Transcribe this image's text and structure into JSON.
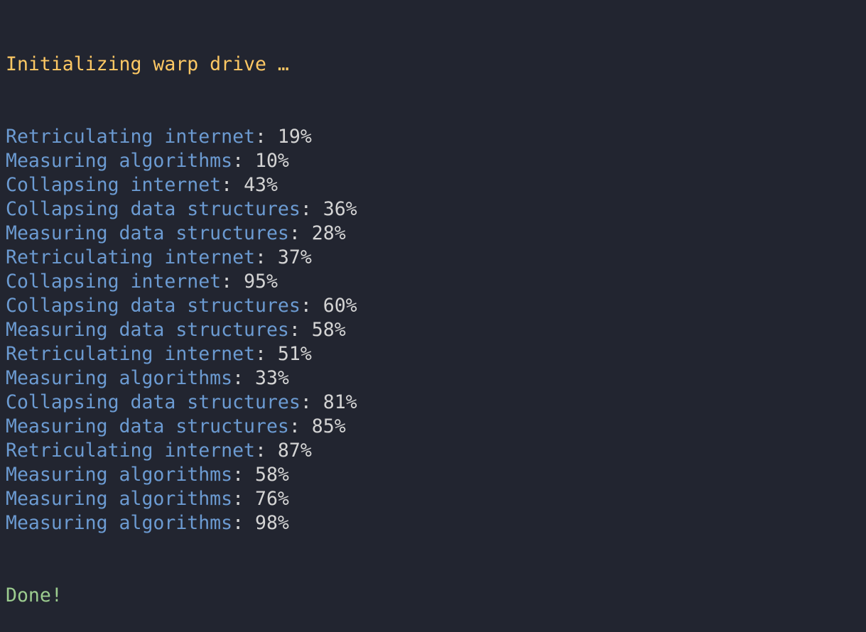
{
  "colors": {
    "background": "#222530",
    "header": "#fdc864",
    "label": "#6c9bd2",
    "value": "#d4d4d4",
    "done": "#9ccc8f"
  },
  "header": "Initializing warp drive …",
  "lines": [
    {
      "label": "Retriculating internet",
      "value": "19%"
    },
    {
      "label": "Measuring algorithms",
      "value": "10%"
    },
    {
      "label": "Collapsing internet",
      "value": "43%"
    },
    {
      "label": "Collapsing data structures",
      "value": "36%"
    },
    {
      "label": "Measuring data structures",
      "value": "28%"
    },
    {
      "label": "Retriculating internet",
      "value": "37%"
    },
    {
      "label": "Collapsing internet",
      "value": "95%"
    },
    {
      "label": "Collapsing data structures",
      "value": "60%"
    },
    {
      "label": "Measuring data structures",
      "value": "58%"
    },
    {
      "label": "Retriculating internet",
      "value": "51%"
    },
    {
      "label": "Measuring algorithms",
      "value": "33%"
    },
    {
      "label": "Collapsing data structures",
      "value": "81%"
    },
    {
      "label": "Measuring data structures",
      "value": "85%"
    },
    {
      "label": "Retriculating internet",
      "value": "87%"
    },
    {
      "label": "Measuring algorithms",
      "value": "58%"
    },
    {
      "label": "Measuring algorithms",
      "value": "76%"
    },
    {
      "label": "Measuring algorithms",
      "value": "98%"
    }
  ],
  "footer": "Done!"
}
